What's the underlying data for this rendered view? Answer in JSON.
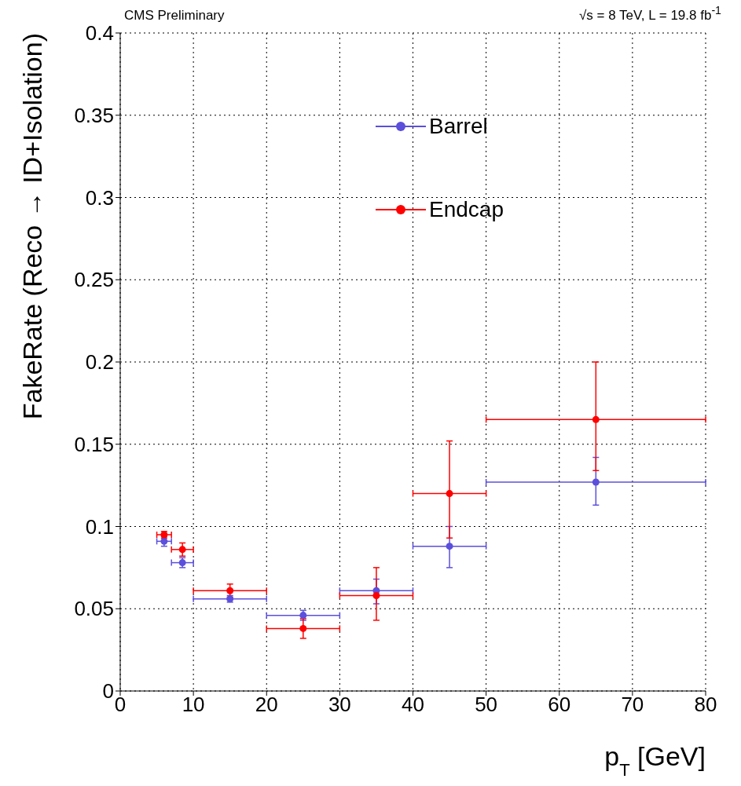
{
  "chart_data": {
    "type": "scatter",
    "title": "CMS Preliminary",
    "annotations": [
      "√s = 8 TeV, L = 19.8 fb$^{-1}$"
    ],
    "xlabel": "p$_{T}$ [GeV]",
    "ylabel": "FakeRate (Reco → ID+Isolation)",
    "xlim": [
      0,
      80
    ],
    "xticks": [
      0,
      10,
      20,
      30,
      40,
      50,
      60,
      70,
      80
    ],
    "ylim": [
      0,
      0.4
    ],
    "yticks": [
      0,
      0.05,
      0.1,
      0.15,
      0.2,
      0.25,
      0.3,
      0.35,
      0.4
    ],
    "grid": true,
    "legend": "top",
    "marker": "circle",
    "series": [
      {
        "name": "Barrel",
        "color": "#5b4fdc",
        "x": [
          6,
          8.5,
          15,
          25,
          35,
          45,
          65
        ],
        "values": [
          0.091,
          0.078,
          0.056,
          0.046,
          0.061,
          0.088,
          0.127
        ],
        "errors": [
          0.003,
          0.003,
          0.002,
          0.003,
          [
            0.053,
            0.068
          ],
          [
            0.075,
            0.1
          ],
          [
            0.113,
            0.142
          ]
        ],
        "xerrors": [
          [
            5,
            7
          ],
          [
            7,
            10
          ],
          [
            10,
            20
          ],
          [
            20,
            30
          ],
          [
            30,
            40
          ],
          [
            40,
            50
          ],
          [
            50,
            80
          ]
        ]
      },
      {
        "name": "Endcap",
        "color": "#ff0000",
        "x": [
          6,
          8.5,
          15,
          25,
          35,
          45,
          65
        ],
        "values": [
          0.095,
          0.086,
          0.061,
          0.038,
          0.058,
          0.12,
          0.165
        ],
        "errors": [
          0.002,
          0.004,
          0.004,
          0.006,
          [
            0.043,
            0.075
          ],
          [
            0.093,
            0.152
          ],
          [
            0.134,
            0.2
          ]
        ],
        "xerrors": [
          [
            5,
            7
          ],
          [
            7,
            10
          ],
          [
            10,
            20
          ],
          [
            20,
            30
          ],
          [
            30,
            40
          ],
          [
            40,
            50
          ],
          [
            50,
            80
          ]
        ]
      }
    ]
  }
}
